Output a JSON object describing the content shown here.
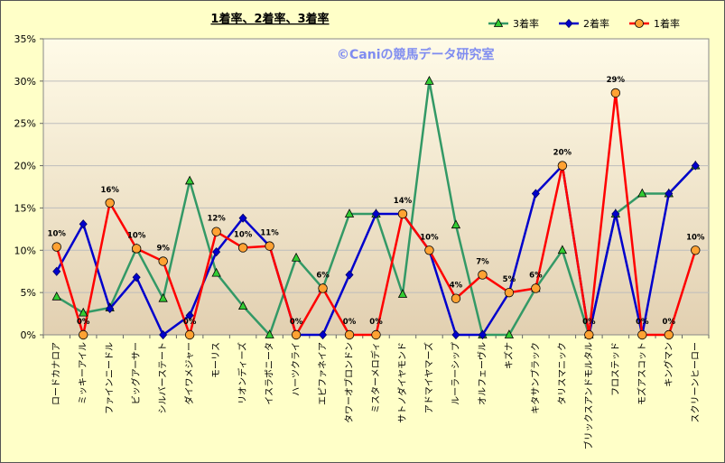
{
  "chart_data": {
    "type": "line",
    "title": "1着率、2着率、3着率",
    "watermark": "©Caniの競馬データ研究室",
    "ylim": [
      0,
      35
    ],
    "yticks": [
      "0%",
      "5%",
      "10%",
      "15%",
      "20%",
      "25%",
      "30%",
      "35%"
    ],
    "legend_position": "top-right",
    "categories": [
      "ロードカナロア",
      "ミッキーアイル",
      "ファインニードル",
      "ビッグアーサー",
      "シルバーステート",
      "ダイワメジャー",
      "モーリス",
      "リオンディーズ",
      "イスラボニータ",
      "ハーツクライ",
      "エピファネイア",
      "タワーオブロンドン",
      "ミスターメロディ",
      "サトノダイヤモンド",
      "アドマイヤマーズ",
      "ルーラーシップ",
      "オルフェーヴル",
      "キズナ",
      "キタサンブラック",
      "タリスマニック",
      "ブリックスアンドモルタル",
      "フロステッド",
      "モズアスコット",
      "キングマン",
      "スクリーンヒーロー"
    ],
    "series": [
      {
        "name": "3着率",
        "color": "#339966",
        "marker": "triangle",
        "values": [
          4.5,
          2.6,
          3.2,
          10.2,
          4.3,
          18.2,
          7.3,
          3.4,
          0,
          9.1,
          5.5,
          14.3,
          14.3,
          4.8,
          30,
          13.0,
          0,
          0,
          5.5,
          10.0,
          0,
          14.3,
          16.7,
          16.7,
          20.0
        ]
      },
      {
        "name": "2着率",
        "color": "#0000cc",
        "marker": "diamond",
        "values": [
          7.5,
          13.1,
          3.1,
          6.8,
          0,
          2.3,
          9.8,
          13.8,
          10.5,
          0,
          0,
          7.1,
          14.3,
          14.3,
          10.0,
          0,
          0,
          5.0,
          16.7,
          20.0,
          0,
          14.3,
          0,
          16.7,
          20.0
        ]
      },
      {
        "name": "1着率",
        "color": "#ff0000",
        "marker": "circle",
        "values": [
          10.4,
          0,
          15.6,
          10.2,
          8.7,
          0,
          12.2,
          10.3,
          10.5,
          0,
          5.5,
          0,
          0,
          14.3,
          10.0,
          4.3,
          7.1,
          5.0,
          5.5,
          20.0,
          0,
          28.6,
          0,
          0,
          10.0
        ]
      }
    ],
    "data_labels": [
      "10%",
      "0%",
      "16%",
      "10%",
      "9%",
      "0%",
      "12%",
      "10%",
      "11%",
      "0%",
      "6%",
      "0%",
      "0%",
      "14%",
      "10%",
      "4%",
      "7%",
      "5%",
      "6%",
      "20%",
      "0%",
      "29%",
      "0%",
      "0%",
      "10%"
    ],
    "legend": [
      "3着率",
      "2着率",
      "1着率"
    ]
  }
}
